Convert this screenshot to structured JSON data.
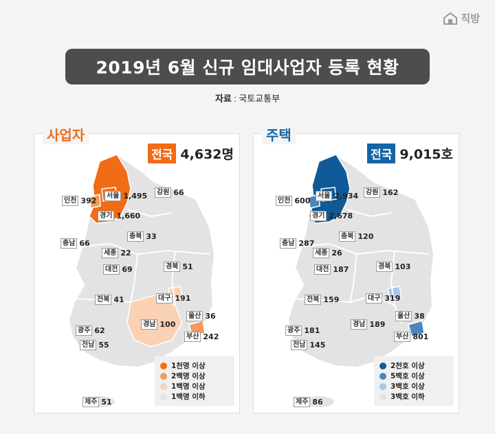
{
  "logo": {
    "text": "직방",
    "icon": "house-icon"
  },
  "title": "2019년 6월 신규 임대사업자 등록 현황",
  "source": {
    "label": "자료",
    "sep": ":",
    "value": "국토교통부"
  },
  "colors": {
    "business_accent": "#f26b16",
    "housing_accent": "#1565a6",
    "base_region": "#e3e3e3"
  },
  "panels": [
    {
      "id": "business",
      "title": "사업자",
      "total_label": "전국",
      "total_value": "4,632명",
      "regions": [
        {
          "name": "인천",
          "value": "392"
        },
        {
          "name": "서울",
          "value": "1,495"
        },
        {
          "name": "강원",
          "value": "66"
        },
        {
          "name": "경기",
          "value": "1,660"
        },
        {
          "name": "충북",
          "value": "33"
        },
        {
          "name": "충남",
          "value": "66"
        },
        {
          "name": "세종",
          "value": "22"
        },
        {
          "name": "대전",
          "value": "69"
        },
        {
          "name": "경북",
          "value": "51"
        },
        {
          "name": "전북",
          "value": "41"
        },
        {
          "name": "대구",
          "value": "191"
        },
        {
          "name": "울산",
          "value": "36"
        },
        {
          "name": "경남",
          "value": "100"
        },
        {
          "name": "광주",
          "value": "62"
        },
        {
          "name": "부산",
          "value": "242"
        },
        {
          "name": "전남",
          "value": "55"
        },
        {
          "name": "제주",
          "value": "51"
        }
      ],
      "legend": [
        {
          "label": "1천명 이상",
          "color": "#f26b16"
        },
        {
          "label": "2백명 이상",
          "color": "#f59a5a"
        },
        {
          "label": "1백명 이상",
          "color": "#fbd1b4"
        },
        {
          "label": "1백명 이하",
          "color": "#e3e3e3"
        }
      ]
    },
    {
      "id": "housing",
      "title": "주택",
      "total_label": "전국",
      "total_value": "9,015호",
      "regions": [
        {
          "name": "인천",
          "value": "600"
        },
        {
          "name": "서울",
          "value": "2,934"
        },
        {
          "name": "강원",
          "value": "162"
        },
        {
          "name": "경기",
          "value": "2,678"
        },
        {
          "name": "충북",
          "value": "120"
        },
        {
          "name": "충남",
          "value": "287"
        },
        {
          "name": "세종",
          "value": "26"
        },
        {
          "name": "대전",
          "value": "187"
        },
        {
          "name": "경북",
          "value": "103"
        },
        {
          "name": "전북",
          "value": "159"
        },
        {
          "name": "대구",
          "value": "319"
        },
        {
          "name": "울산",
          "value": "38"
        },
        {
          "name": "경남",
          "value": "189"
        },
        {
          "name": "광주",
          "value": "181"
        },
        {
          "name": "부산",
          "value": "801"
        },
        {
          "name": "전남",
          "value": "145"
        },
        {
          "name": "제주",
          "value": "86"
        }
      ],
      "legend": [
        {
          "label": "2천호 이상",
          "color": "#0f5a96"
        },
        {
          "label": "5백호 이상",
          "color": "#4b86bd"
        },
        {
          "label": "3백호 이상",
          "color": "#a9c8e4"
        },
        {
          "label": "3백호 이하",
          "color": "#e3e3e3"
        }
      ]
    }
  ]
}
